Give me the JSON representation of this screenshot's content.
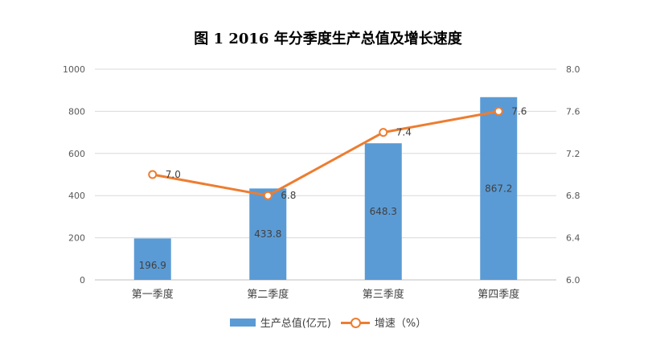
{
  "chart_data": {
    "type": "bar+line",
    "title": "图 1   2016 年分季度生产总值及增长速度",
    "categories": [
      "第一季度",
      "第二季度",
      "第三季度",
      "第四季度"
    ],
    "series": [
      {
        "name": "生产总值(亿元)",
        "type": "bar",
        "axis": "left",
        "values": [
          196.9,
          433.8,
          648.3,
          867.2
        ],
        "value_labels": [
          "196.9",
          "433.8",
          "648.3",
          "867.2"
        ],
        "color": "#5b9bd5"
      },
      {
        "name": "增速（%）",
        "type": "line",
        "axis": "right",
        "values": [
          7.0,
          6.8,
          7.4,
          7.6
        ],
        "value_labels": [
          "7.0",
          "6.8",
          "7.4",
          "7.6"
        ],
        "color": "#ed7d31"
      }
    ],
    "left_axis": {
      "ylim": [
        0,
        1000
      ],
      "ticks": [
        0,
        200,
        400,
        600,
        800,
        1000
      ],
      "tick_labels": [
        "0",
        "200",
        "400",
        "600",
        "800",
        "1000"
      ]
    },
    "right_axis": {
      "ylim": [
        6.0,
        8.0
      ],
      "ticks": [
        6.0,
        6.4,
        6.8,
        7.2,
        7.6,
        8.0
      ],
      "tick_labels": [
        "6.0",
        "6.4",
        "6.8",
        "7.2",
        "7.6",
        "8.0"
      ]
    },
    "grid": true,
    "legend_position": "bottom"
  }
}
